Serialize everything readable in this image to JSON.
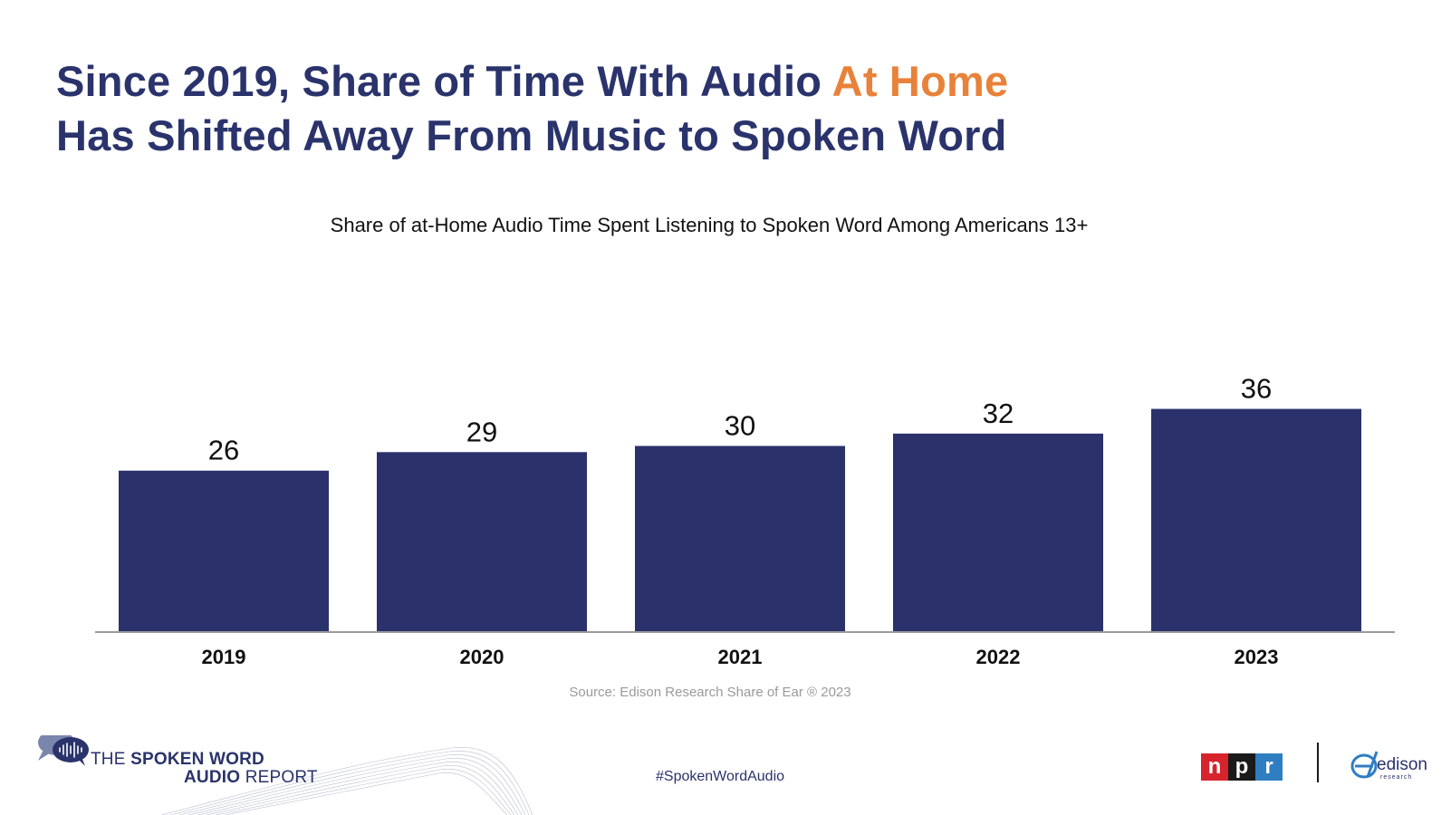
{
  "title": {
    "line1_part1": "Since 2019, Share of Time With Audio ",
    "line1_accent": "At Home",
    "line2": "Has Shifted Away From Music to Spoken Word"
  },
  "colors": {
    "bar": "#2a316b",
    "title": "#2a336b",
    "accent": "#e8823a",
    "axis": "#7a7a7a"
  },
  "chart_data": {
    "type": "bar",
    "title": "Share of at-Home Audio Time Spent Listening to Spoken Word Among Americans 13+",
    "categories": [
      "2019",
      "2020",
      "2021",
      "2022",
      "2023"
    ],
    "values": [
      26,
      29,
      30,
      32,
      36
    ],
    "data_labels": [
      "26",
      "29",
      "30",
      "32",
      "36"
    ],
    "xlabel": "",
    "ylabel": "",
    "ylim": [
      0,
      55
    ],
    "grid": false,
    "legend": "none"
  },
  "source": "Source: Edison Research Share of Ear ® 2023",
  "footer": {
    "hashtag": "#SpokenWordAudio",
    "report_line1_light": "THE ",
    "report_line1_bold": "SPOKEN WORD",
    "report_line2_bold": "AUDIO",
    "report_line2_light": " REPORT",
    "npr_letters": [
      "n",
      "p",
      "r"
    ],
    "edison_word": "edison",
    "edison_sub": "research"
  }
}
